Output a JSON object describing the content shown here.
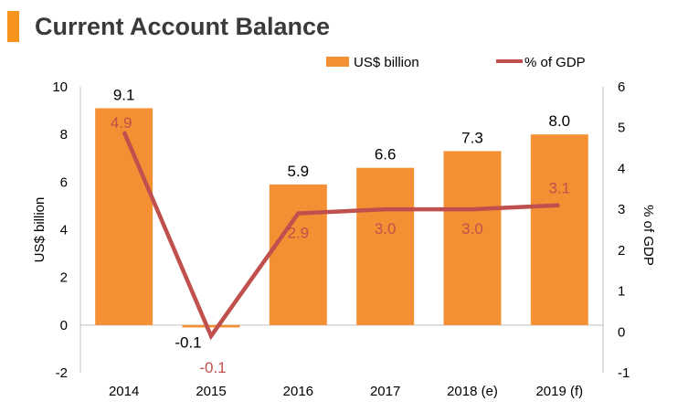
{
  "header": {
    "title": "Current Account Balance",
    "accent_color": "#f7941d"
  },
  "chart_data": {
    "type": "bar",
    "title": "Current Account Balance",
    "categories": [
      "2014",
      "2015",
      "2016",
      "2017",
      "2018 (e)",
      "2019 (f)"
    ],
    "series": [
      {
        "name": "US$ billion",
        "type": "bar",
        "axis": "left",
        "color": "#f58f33",
        "values": [
          9.1,
          -0.1,
          5.9,
          6.6,
          7.3,
          8.0
        ],
        "labels": [
          "9.1",
          "-0.1",
          "5.9",
          "6.6",
          "7.3",
          "8.0"
        ]
      },
      {
        "name": "% of GDP",
        "type": "line",
        "axis": "right",
        "color": "#c0504d",
        "values": [
          4.9,
          -0.1,
          2.9,
          3.0,
          3.0,
          3.1
        ],
        "labels": [
          "4.9",
          "-0.1",
          "2.9",
          "3.0",
          "3.0",
          "3.1"
        ]
      }
    ],
    "ylabel": "US$ billion",
    "ylim": [
      -2,
      10
    ],
    "yticks": [
      "-2",
      "0",
      "2",
      "4",
      "6",
      "8",
      "10"
    ],
    "y2label": "% of GDP",
    "y2lim": [
      -1,
      6
    ],
    "y2ticks": [
      "-1",
      "0",
      "1",
      "2",
      "3",
      "4",
      "5",
      "6"
    ],
    "legend_position": "top-right",
    "grid": false
  }
}
